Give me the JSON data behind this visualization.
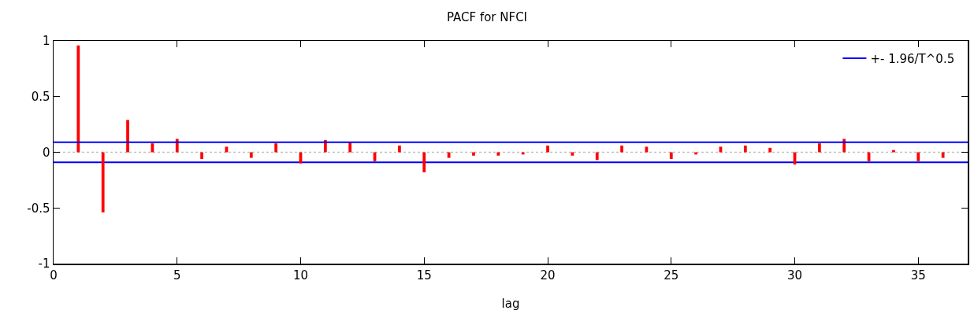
{
  "chart_data": {
    "type": "bar",
    "title": "PACF for NFCI",
    "xlabel": "lag",
    "x": [
      1,
      2,
      3,
      4,
      5,
      6,
      7,
      8,
      9,
      10,
      11,
      12,
      13,
      14,
      15,
      16,
      17,
      18,
      19,
      20,
      21,
      22,
      23,
      24,
      25,
      26,
      27,
      28,
      29,
      30,
      31,
      32,
      33,
      34,
      35,
      36
    ],
    "series": [
      {
        "color": "#ff0000",
        "values": [
          0.96,
          -0.54,
          0.29,
          0.08,
          0.12,
          -0.06,
          0.05,
          -0.05,
          0.08,
          -0.1,
          0.11,
          0.09,
          -0.08,
          0.06,
          -0.18,
          -0.05,
          -0.03,
          -0.03,
          -0.02,
          0.06,
          -0.03,
          -0.07,
          0.06,
          0.05,
          -0.06,
          -0.02,
          0.05,
          0.06,
          0.04,
          -0.11,
          0.08,
          0.12,
          -0.08,
          0.02,
          -0.08,
          -0.05
        ]
      }
    ],
    "ref_lines": [
      {
        "axis": "y",
        "value": 0,
        "color": "#c0c0c0",
        "line_style": "dotted"
      },
      {
        "axis": "y",
        "value": 0.09,
        "label": "+- 1.96/T^0.5",
        "color": "#0000ff",
        "line_style": "solid"
      },
      {
        "axis": "y",
        "value": -0.09,
        "color": "#0000ff",
        "line_style": "solid"
      }
    ],
    "xlim": [
      0,
      37
    ],
    "xticks": [
      0,
      5,
      10,
      15,
      20,
      25,
      30,
      35
    ],
    "ylim": [
      -1,
      1
    ],
    "yticks": [
      -1,
      -0.5,
      0,
      0.5,
      1
    ],
    "grid": false,
    "legend": "top right"
  }
}
